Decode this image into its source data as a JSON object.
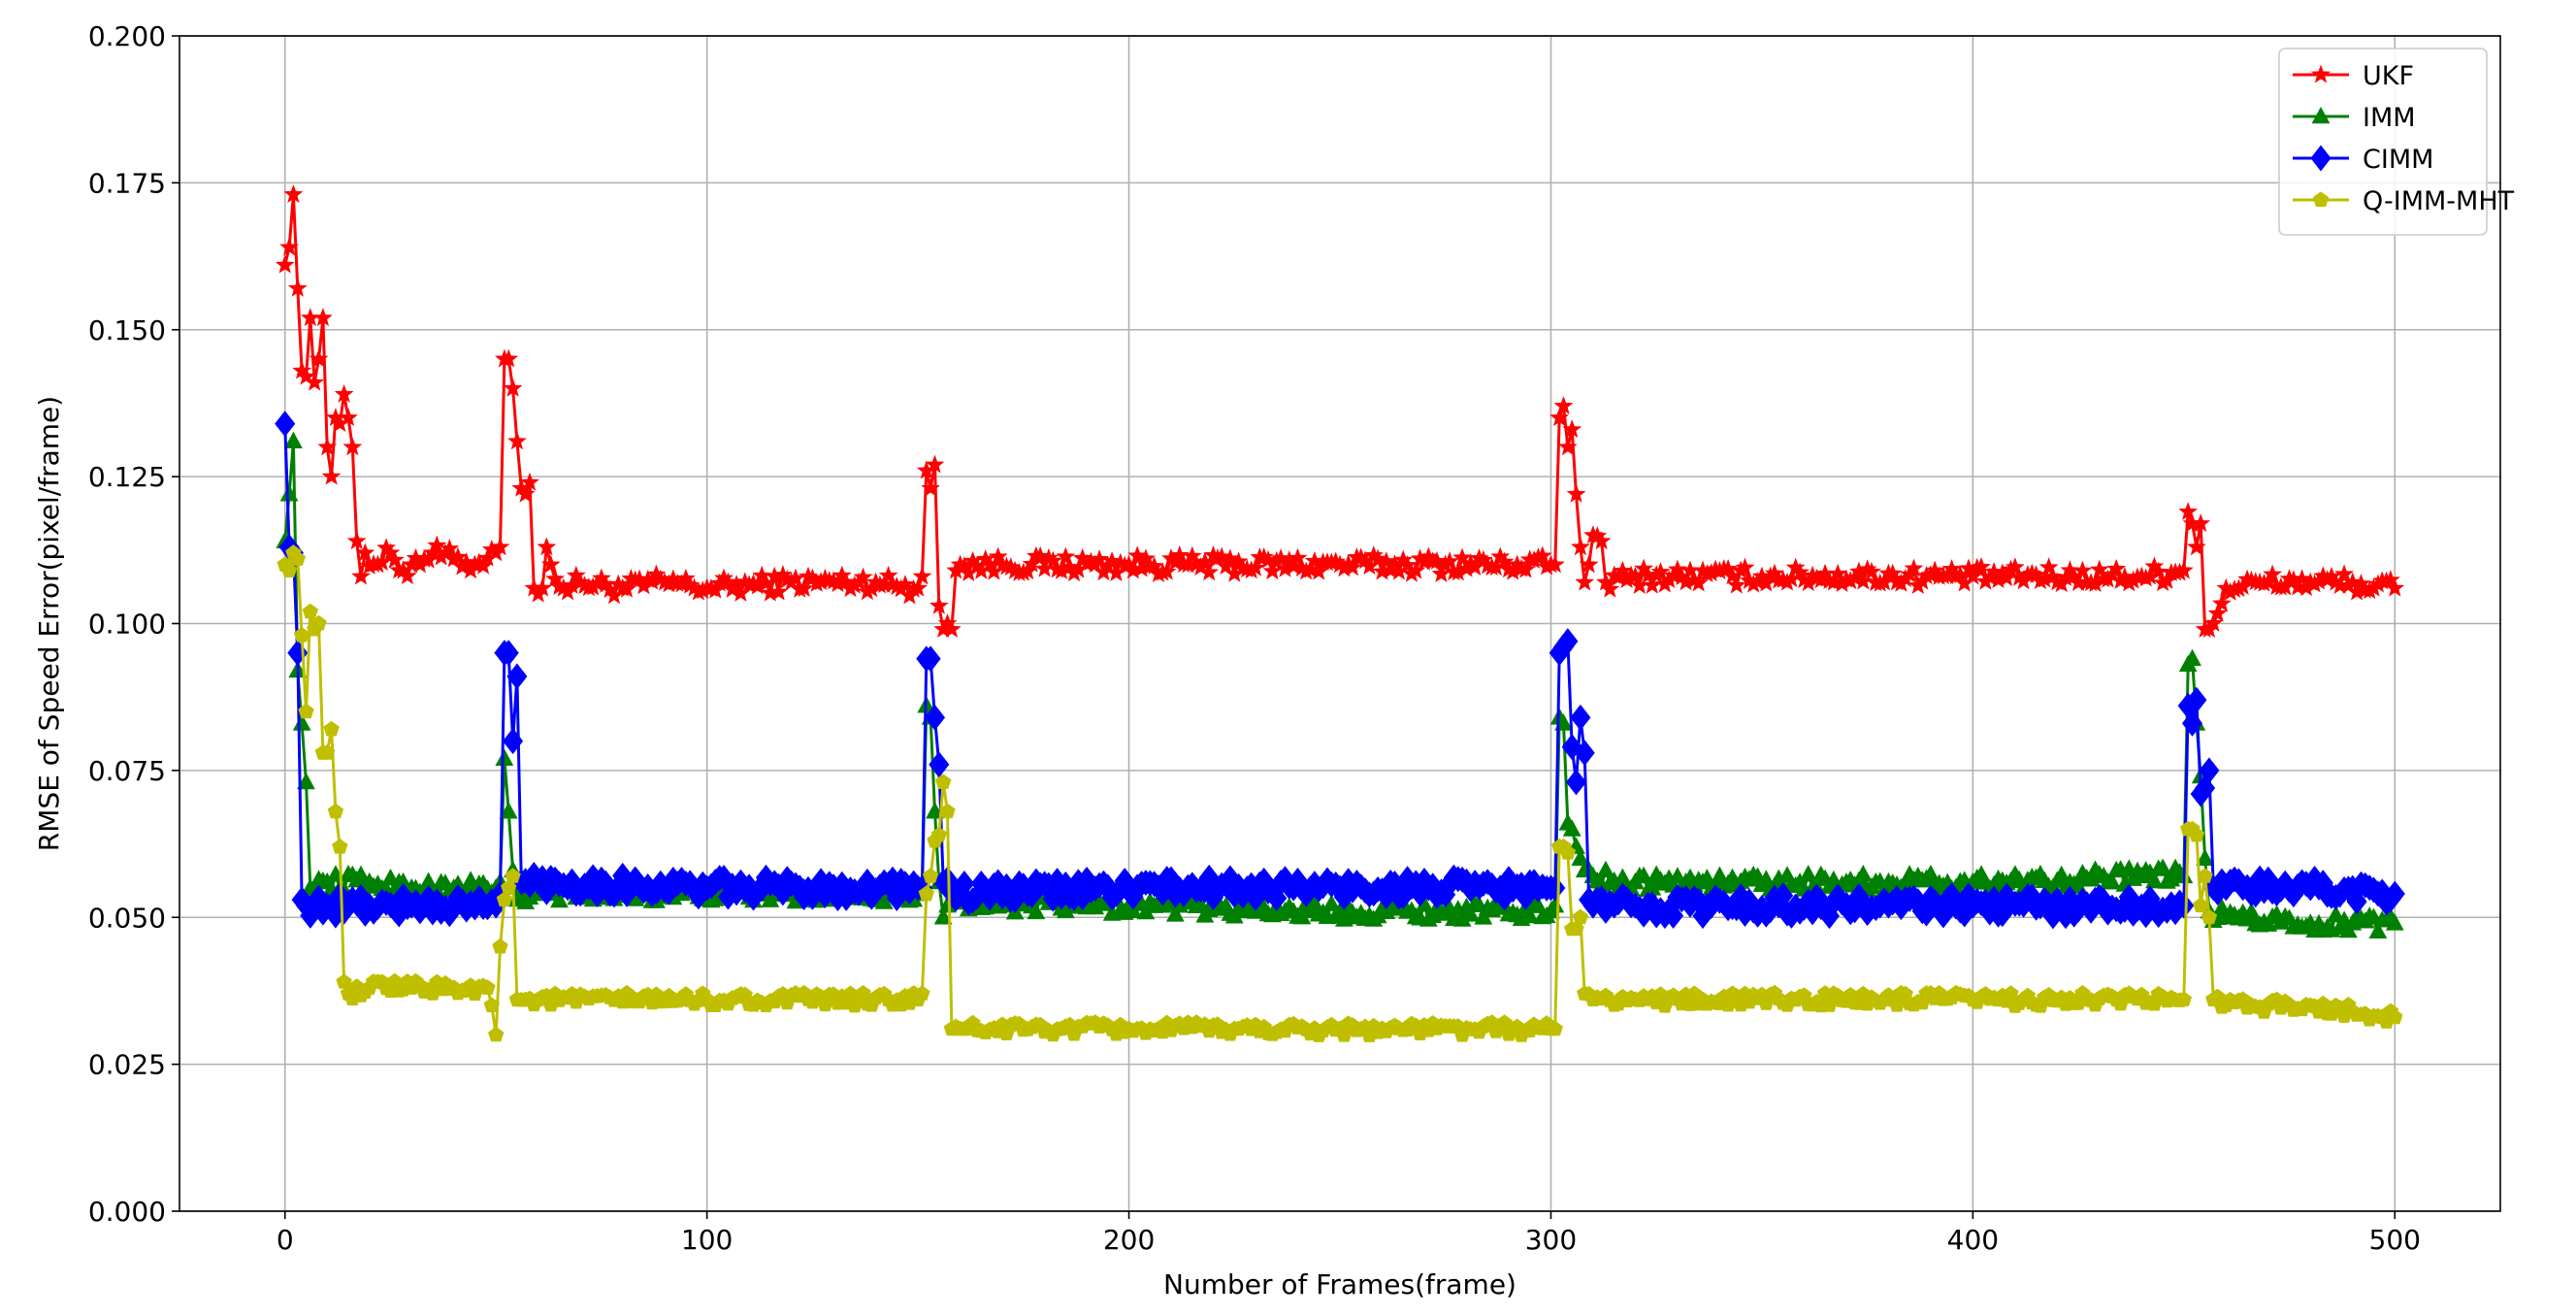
{
  "chart_data": {
    "type": "line",
    "title": "",
    "xlabel": "Number of Frames(frame)",
    "ylabel": "RMSE of Speed Error(pixel/frame)",
    "xlim": [
      -25,
      525
    ],
    "ylim": [
      0,
      0.2
    ],
    "xticks": [
      0,
      100,
      200,
      300,
      400,
      500
    ],
    "yticks": [
      0.0,
      0.025,
      0.05,
      0.075,
      0.1,
      0.125,
      0.15,
      0.175,
      0.2
    ],
    "xtick_labels": [
      "0",
      "100",
      "200",
      "300",
      "400",
      "500"
    ],
    "ytick_labels": [
      "0.000",
      "0.025",
      "0.050",
      "0.075",
      "0.100",
      "0.125",
      "0.150",
      "0.175",
      "0.200"
    ],
    "grid": true,
    "legend_position": "top-right",
    "x": {
      "start": 0,
      "end": 500,
      "step": 1
    },
    "series": [
      {
        "name": "UKF",
        "color": "#ff0000",
        "marker": "star",
        "anchors": [
          [
            0,
            0.161
          ],
          [
            1,
            0.164
          ],
          [
            2,
            0.173
          ],
          [
            3,
            0.157
          ],
          [
            4,
            0.143
          ],
          [
            5,
            0.142
          ],
          [
            6,
            0.152
          ],
          [
            7,
            0.141
          ],
          [
            8,
            0.145
          ],
          [
            9,
            0.152
          ],
          [
            10,
            0.13
          ],
          [
            11,
            0.125
          ],
          [
            12,
            0.135
          ],
          [
            13,
            0.134
          ],
          [
            14,
            0.139
          ],
          [
            15,
            0.135
          ],
          [
            16,
            0.13
          ],
          [
            17,
            0.114
          ],
          [
            18,
            0.108
          ],
          [
            19,
            0.112
          ],
          [
            22,
            0.11
          ],
          [
            25,
            0.112
          ],
          [
            28,
            0.109
          ],
          [
            30,
            0.11
          ],
          [
            35,
            0.112
          ],
          [
            40,
            0.111
          ],
          [
            45,
            0.11
          ],
          [
            50,
            0.112
          ],
          [
            51,
            0.113
          ],
          [
            52,
            0.145
          ],
          [
            53,
            0.145
          ],
          [
            54,
            0.14
          ],
          [
            55,
            0.131
          ],
          [
            56,
            0.123
          ],
          [
            57,
            0.122
          ],
          [
            58,
            0.124
          ],
          [
            59,
            0.106
          ],
          [
            60,
            0.105
          ],
          [
            61,
            0.106
          ],
          [
            62,
            0.113
          ],
          [
            63,
            0.11
          ],
          [
            66,
            0.106
          ],
          [
            70,
            0.107
          ],
          [
            80,
            0.106
          ],
          [
            90,
            0.107
          ],
          [
            100,
            0.106
          ],
          [
            120,
            0.107
          ],
          [
            140,
            0.107
          ],
          [
            150,
            0.106
          ],
          [
            151,
            0.108
          ],
          [
            152,
            0.126
          ],
          [
            153,
            0.123
          ],
          [
            154,
            0.127
          ],
          [
            155,
            0.103
          ],
          [
            156,
            0.099
          ],
          [
            157,
            0.1
          ],
          [
            158,
            0.099
          ],
          [
            159,
            0.109
          ],
          [
            160,
            0.11
          ],
          [
            170,
            0.11
          ],
          [
            200,
            0.11
          ],
          [
            250,
            0.11
          ],
          [
            300,
            0.11
          ],
          [
            301,
            0.11
          ],
          [
            302,
            0.135
          ],
          [
            303,
            0.137
          ],
          [
            304,
            0.13
          ],
          [
            305,
            0.133
          ],
          [
            306,
            0.122
          ],
          [
            307,
            0.113
          ],
          [
            308,
            0.107
          ],
          [
            309,
            0.11
          ],
          [
            310,
            0.115
          ],
          [
            312,
            0.114
          ],
          [
            313,
            0.107
          ],
          [
            320,
            0.108
          ],
          [
            350,
            0.108
          ],
          [
            400,
            0.108
          ],
          [
            440,
            0.108
          ],
          [
            450,
            0.109
          ],
          [
            451,
            0.119
          ],
          [
            452,
            0.117
          ],
          [
            453,
            0.113
          ],
          [
            454,
            0.117
          ],
          [
            455,
            0.099
          ],
          [
            456,
            0.099
          ],
          [
            457,
            0.1
          ],
          [
            460,
            0.106
          ],
          [
            470,
            0.107
          ],
          [
            480,
            0.107
          ],
          [
            490,
            0.107
          ],
          [
            495,
            0.106
          ],
          [
            500,
            0.106
          ]
        ],
        "jitter": 0.0016
      },
      {
        "name": "IMM",
        "color": "#008000",
        "marker": "triangle",
        "anchors": [
          [
            0,
            0.114
          ],
          [
            1,
            0.122
          ],
          [
            2,
            0.131
          ],
          [
            3,
            0.092
          ],
          [
            4,
            0.083
          ],
          [
            5,
            0.073
          ],
          [
            6,
            0.055
          ],
          [
            10,
            0.056
          ],
          [
            20,
            0.056
          ],
          [
            30,
            0.055
          ],
          [
            40,
            0.055
          ],
          [
            50,
            0.055
          ],
          [
            51,
            0.056
          ],
          [
            52,
            0.077
          ],
          [
            53,
            0.068
          ],
          [
            54,
            0.058
          ],
          [
            55,
            0.053
          ],
          [
            60,
            0.054
          ],
          [
            100,
            0.054
          ],
          [
            150,
            0.054
          ],
          [
            151,
            0.054
          ],
          [
            152,
            0.086
          ],
          [
            153,
            0.084
          ],
          [
            154,
            0.068
          ],
          [
            155,
            0.056
          ],
          [
            156,
            0.05
          ],
          [
            157,
            0.052
          ],
          [
            158,
            0.053
          ],
          [
            170,
            0.052
          ],
          [
            200,
            0.052
          ],
          [
            250,
            0.051
          ],
          [
            300,
            0.051
          ],
          [
            301,
            0.052
          ],
          [
            302,
            0.084
          ],
          [
            303,
            0.083
          ],
          [
            304,
            0.066
          ],
          [
            305,
            0.065
          ],
          [
            306,
            0.062
          ],
          [
            307,
            0.06
          ],
          [
            308,
            0.058
          ],
          [
            310,
            0.057
          ],
          [
            320,
            0.056
          ],
          [
            400,
            0.056
          ],
          [
            440,
            0.057
          ],
          [
            450,
            0.057
          ],
          [
            451,
            0.093
          ],
          [
            452,
            0.094
          ],
          [
            453,
            0.083
          ],
          [
            454,
            0.074
          ],
          [
            455,
            0.06
          ],
          [
            456,
            0.051
          ],
          [
            460,
            0.05
          ],
          [
            480,
            0.049
          ],
          [
            490,
            0.049
          ],
          [
            500,
            0.049
          ]
        ],
        "jitter": 0.0014
      },
      {
        "name": "CIMM",
        "color": "#0000ff",
        "marker": "diamond",
        "anchors": [
          [
            0,
            0.134
          ],
          [
            1,
            0.113
          ],
          [
            2,
            0.112
          ],
          [
            3,
            0.095
          ],
          [
            4,
            0.053
          ],
          [
            5,
            0.052
          ],
          [
            10,
            0.052
          ],
          [
            20,
            0.052
          ],
          [
            30,
            0.052
          ],
          [
            40,
            0.052
          ],
          [
            50,
            0.052
          ],
          [
            51,
            0.054
          ],
          [
            52,
            0.095
          ],
          [
            53,
            0.095
          ],
          [
            54,
            0.08
          ],
          [
            55,
            0.091
          ],
          [
            56,
            0.056
          ],
          [
            60,
            0.056
          ],
          [
            100,
            0.055
          ],
          [
            150,
            0.055
          ],
          [
            151,
            0.055
          ],
          [
            152,
            0.094
          ],
          [
            153,
            0.094
          ],
          [
            154,
            0.084
          ],
          [
            155,
            0.076
          ],
          [
            156,
            0.056
          ],
          [
            160,
            0.054
          ],
          [
            200,
            0.055
          ],
          [
            250,
            0.055
          ],
          [
            300,
            0.055
          ],
          [
            301,
            0.055
          ],
          [
            302,
            0.095
          ],
          [
            303,
            0.096
          ],
          [
            304,
            0.097
          ],
          [
            305,
            0.079
          ],
          [
            306,
            0.073
          ],
          [
            307,
            0.084
          ],
          [
            308,
            0.078
          ],
          [
            309,
            0.053
          ],
          [
            310,
            0.052
          ],
          [
            320,
            0.052
          ],
          [
            400,
            0.052
          ],
          [
            450,
            0.052
          ],
          [
            451,
            0.086
          ],
          [
            452,
            0.083
          ],
          [
            453,
            0.087
          ],
          [
            454,
            0.071
          ],
          [
            455,
            0.072
          ],
          [
            456,
            0.075
          ],
          [
            457,
            0.055
          ],
          [
            460,
            0.055
          ],
          [
            480,
            0.055
          ],
          [
            500,
            0.054
          ]
        ],
        "jitter": 0.0018
      },
      {
        "name": "Q-IMM-MHT",
        "color": "#bfbf00",
        "marker": "pentagon",
        "anchors": [
          [
            0,
            0.11
          ],
          [
            1,
            0.109
          ],
          [
            2,
            0.112
          ],
          [
            3,
            0.111
          ],
          [
            4,
            0.098
          ],
          [
            5,
            0.085
          ],
          [
            6,
            0.102
          ],
          [
            7,
            0.099
          ],
          [
            8,
            0.1
          ],
          [
            9,
            0.078
          ],
          [
            10,
            0.078
          ],
          [
            11,
            0.082
          ],
          [
            12,
            0.068
          ],
          [
            13,
            0.062
          ],
          [
            14,
            0.039
          ],
          [
            15,
            0.037
          ],
          [
            20,
            0.038
          ],
          [
            30,
            0.038
          ],
          [
            40,
            0.038
          ],
          [
            48,
            0.038
          ],
          [
            49,
            0.035
          ],
          [
            50,
            0.03
          ],
          [
            51,
            0.045
          ],
          [
            52,
            0.053
          ],
          [
            53,
            0.055
          ],
          [
            54,
            0.057
          ],
          [
            55,
            0.036
          ],
          [
            60,
            0.036
          ],
          [
            100,
            0.036
          ],
          [
            150,
            0.036
          ],
          [
            151,
            0.037
          ],
          [
            152,
            0.054
          ],
          [
            153,
            0.057
          ],
          [
            154,
            0.063
          ],
          [
            155,
            0.064
          ],
          [
            156,
            0.073
          ],
          [
            157,
            0.068
          ],
          [
            158,
            0.031
          ],
          [
            160,
            0.031
          ],
          [
            200,
            0.031
          ],
          [
            250,
            0.031
          ],
          [
            300,
            0.031
          ],
          [
            301,
            0.031
          ],
          [
            302,
            0.062
          ],
          [
            303,
            0.062
          ],
          [
            304,
            0.061
          ],
          [
            305,
            0.048
          ],
          [
            306,
            0.048
          ],
          [
            307,
            0.05
          ],
          [
            308,
            0.037
          ],
          [
            310,
            0.036
          ],
          [
            320,
            0.036
          ],
          [
            400,
            0.036
          ],
          [
            450,
            0.036
          ],
          [
            451,
            0.065
          ],
          [
            452,
            0.065
          ],
          [
            453,
            0.064
          ],
          [
            454,
            0.052
          ],
          [
            455,
            0.057
          ],
          [
            456,
            0.05
          ],
          [
            457,
            0.036
          ],
          [
            460,
            0.035
          ],
          [
            480,
            0.035
          ],
          [
            490,
            0.034
          ],
          [
            500,
            0.033
          ]
        ],
        "jitter": 0.0011
      }
    ]
  }
}
